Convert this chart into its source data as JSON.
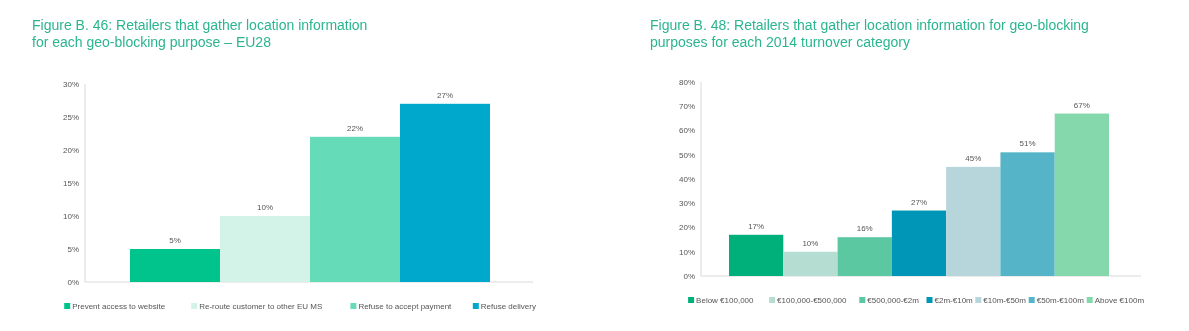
{
  "chart_data": [
    {
      "type": "bar",
      "title": "Figure B. 46: Retailers that gather location information\nfor each geo-blocking purpose – EU28",
      "categories": [
        null
      ],
      "ylim": [
        0,
        30
      ],
      "yticks": [
        {
          "value": 0,
          "label": "0%"
        },
        {
          "value": 5,
          "label": "5%"
        },
        {
          "value": 10,
          "label": "10%"
        },
        {
          "value": 15,
          "label": "15%"
        },
        {
          "value": 20,
          "label": "20%"
        },
        {
          "value": 25,
          "label": "25%"
        },
        {
          "value": 30,
          "label": "30%"
        }
      ],
      "grid": false,
      "legend": "bottom",
      "series": [
        {
          "name": "Prevent access to website",
          "color": "#00c48c",
          "values": [
            5
          ],
          "value_labels": [
            "5%"
          ]
        },
        {
          "name": "Re-route customer to other EU MS",
          "color": "#d3f2e8",
          "values": [
            10
          ],
          "value_labels": [
            "10%"
          ]
        },
        {
          "name": "Refuse to accept payment",
          "color": "#66dbb8",
          "values": [
            22
          ],
          "value_labels": [
            "22%"
          ]
        },
        {
          "name": "Refuse delivery",
          "color": "#00a9cc",
          "values": [
            27
          ],
          "value_labels": [
            "27%"
          ]
        }
      ]
    },
    {
      "type": "bar",
      "title": "Figure B. 48: Retailers that gather location information for geo-blocking\npurposes for each 2014 turnover category",
      "categories": [
        null
      ],
      "ylim": [
        0,
        80
      ],
      "yticks": [
        {
          "value": 0,
          "label": "0%"
        },
        {
          "value": 10,
          "label": "10%"
        },
        {
          "value": 20,
          "label": "20%"
        },
        {
          "value": 30,
          "label": "30%"
        },
        {
          "value": 40,
          "label": "40%"
        },
        {
          "value": 50,
          "label": "50%"
        },
        {
          "value": 60,
          "label": "60%"
        },
        {
          "value": 70,
          "label": "70%"
        },
        {
          "value": 80,
          "label": "80%"
        }
      ],
      "grid": false,
      "legend": "bottom",
      "series": [
        {
          "name": "Below  €100,000",
          "color": "#00b07a",
          "values": [
            17
          ],
          "value_labels": [
            "17%"
          ]
        },
        {
          "name": "€100,000-€500,000",
          "color": "#b5ddd2",
          "values": [
            10
          ],
          "value_labels": [
            "10%"
          ]
        },
        {
          "name": "€500,000-€2m",
          "color": "#5cc8a2",
          "values": [
            16
          ],
          "value_labels": [
            "16%"
          ]
        },
        {
          "name": "€2m-€10m",
          "color": "#0096b8",
          "values": [
            27
          ],
          "value_labels": [
            "27%"
          ]
        },
        {
          "name": "€10m-€50m",
          "color": "#b6d6dc",
          "values": [
            45
          ],
          "value_labels": [
            "45%"
          ]
        },
        {
          "name": "€50m-€100m",
          "color": "#55b4c8",
          "values": [
            51
          ],
          "value_labels": [
            "51%"
          ]
        },
        {
          "name": "Above  €100m",
          "color": "#84d8ac",
          "values": [
            67
          ],
          "value_labels": [
            "67%"
          ]
        }
      ]
    }
  ]
}
